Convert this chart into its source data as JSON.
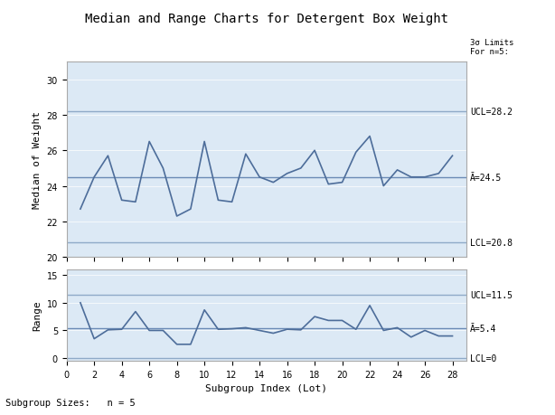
{
  "title": "Median and Range Charts for Detergent Box Weight",
  "subtitle_right": "3σ Limits\nFor n=5:",
  "subgroup_label": "Subgroup Sizes:   n = 5",
  "xlabel": "Subgroup Index (Lot)",
  "ylabel_top": "Median of Weight",
  "ylabel_bottom": "Range",
  "x": [
    1,
    2,
    3,
    4,
    5,
    6,
    7,
    8,
    9,
    10,
    11,
    12,
    13,
    14,
    15,
    16,
    17,
    18,
    19,
    20,
    21,
    22,
    23,
    24,
    25,
    26,
    27,
    28
  ],
  "median_values": [
    22.7,
    24.5,
    25.7,
    23.2,
    23.1,
    26.5,
    25.0,
    22.3,
    22.7,
    26.5,
    23.2,
    23.1,
    25.8,
    24.5,
    24.2,
    24.7,
    25.0,
    26.0,
    24.1,
    24.2,
    25.9,
    26.8,
    24.0,
    24.9,
    24.5,
    24.5,
    24.7,
    25.7
  ],
  "range_values": [
    10.0,
    3.5,
    5.1,
    5.2,
    8.4,
    5.0,
    5.0,
    2.5,
    2.5,
    8.7,
    5.2,
    5.3,
    5.5,
    5.0,
    4.5,
    5.2,
    5.1,
    7.5,
    6.8,
    6.8,
    5.2,
    9.5,
    5.0,
    5.5,
    3.8,
    5.0,
    4.0,
    4.0
  ],
  "median_UCL": 28.2,
  "median_CL": 24.5,
  "median_LCL": 20.8,
  "median_ylim": [
    20,
    31
  ],
  "median_yticks": [
    20,
    22,
    24,
    26,
    28,
    30
  ],
  "range_UCL": 11.5,
  "range_CL": 5.4,
  "range_LCL": 0,
  "range_ylim": [
    -0.5,
    16
  ],
  "range_yticks": [
    0,
    5,
    10,
    15
  ],
  "xlim": [
    0,
    29
  ],
  "xticks": [
    0,
    2,
    4,
    6,
    8,
    10,
    12,
    14,
    16,
    18,
    20,
    22,
    24,
    26,
    28
  ],
  "line_color": "#4d6d9a",
  "cl_color": "#6a8ab5",
  "ucl_lcl_color": "#8faac8",
  "bg_color": "#dce9f5",
  "outer_bg": "#f0f0f0",
  "label_color": "#333333",
  "font_family": "monospace"
}
